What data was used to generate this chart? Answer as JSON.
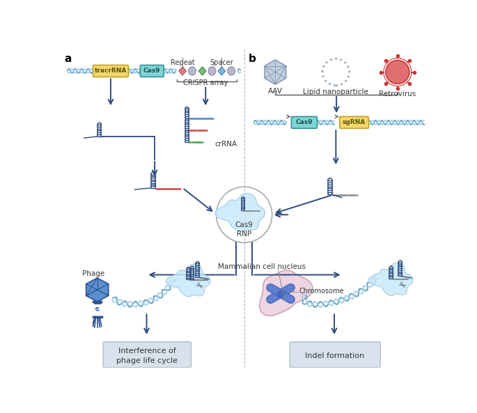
{
  "bg_color": "#ffffff",
  "dna_color1": "#5ba3c9",
  "dna_color2": "#a8cfe8",
  "arrow_color": "#2d4a7a",
  "arrow_color_light": "#555555",
  "tracr_color": "#f5d76e",
  "tracr_edge": "#c4a020",
  "cas9_color": "#7dd6d6",
  "cas9_edge": "#3a9090",
  "sgrna_color": "#f5d76e",
  "sgrna_edge": "#c4a020",
  "repeat_col1": "#e87b7b",
  "repeat_col2": "#7db87d",
  "repeat_col3": "#7db8d8",
  "spacer_col": "#b8b8cc",
  "spacer_edge": "#8888aa",
  "label_a": "a",
  "label_b": "b",
  "label_tracr": "tracrRNA",
  "label_cas9": "Cas9",
  "label_sgrna": "sgRNA",
  "label_repeat": "Repeat",
  "label_spacer": "Spacer",
  "label_crispr": "CRISPR array",
  "label_crrna": "crRNA",
  "label_cas9rnp": "Cas9\nRNP",
  "label_aav": "AAV",
  "label_lipid": "Lipid nanoparticle",
  "label_retrovirus": "Retrovirus",
  "label_phage": "Phage",
  "label_interference": "Interference of\nphage life cycle",
  "label_mammalian": "Mammalian cell nucleus",
  "label_chromosome": "Chromosome",
  "label_indel": "Indel formation",
  "divider_color": "#bbbbbb",
  "box_fill": "#d8e2ec",
  "box_edge": "#b0bec8",
  "cloud_fill": "#c8e8f8",
  "cloud_edge": "#a0c8e0",
  "phage_fill": "#5a8fd0",
  "phage_edge": "#2a5090",
  "retrovirus_fill": "#e07070",
  "retrovirus_edge": "#cc3333",
  "retrovirus_spike": "#cc3333",
  "aav_fill": "#c0d0e0",
  "aav_edge": "#8090a8",
  "nucleus_fill": "#e8c8d8",
  "nucleus_edge": "#c8a0b8",
  "chromosome_col": "#4466bb",
  "stem_color": "#2d4a7a",
  "tail_blue": "#4488cc",
  "tail_red": "#cc4444",
  "tail_green": "#44aa44",
  "tail_gray": "#888888",
  "scissors_col": "#444444"
}
